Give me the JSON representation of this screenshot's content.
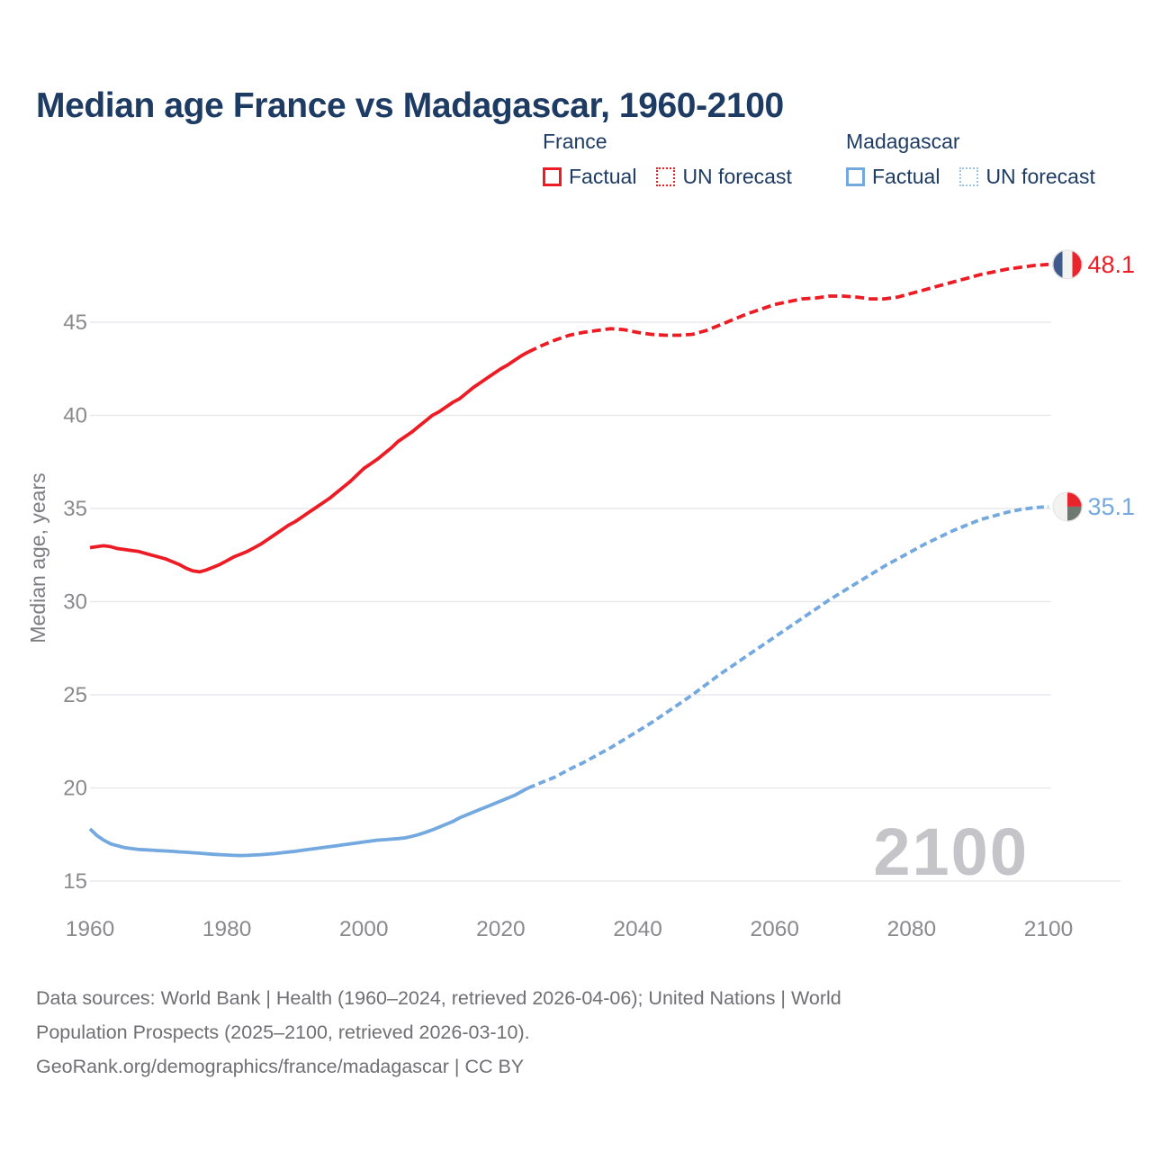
{
  "title": "Median age France vs Madagascar, 1960-2100",
  "legend": {
    "france": {
      "name": "France",
      "factual_label": "Factual",
      "forecast_label": "UN forecast",
      "factual_color": "#ed1c24",
      "forecast_color": "#ed1c24"
    },
    "madagascar": {
      "name": "Madagascar",
      "factual_label": "Factual",
      "forecast_label": "UN forecast",
      "factual_color": "#74a9e0",
      "forecast_color": "#9cc3ec"
    }
  },
  "watermark": "2100",
  "footer": {
    "line1": "Data sources: World Bank | Health (1960–2024, retrieved 2026-04-06); United Nations | World",
    "line2": "Population Prospects (2025–2100, retrieved 2026-03-10).",
    "line3": "GeoRank.org/demographics/france/madagascar | CC BY"
  },
  "chart_data": {
    "type": "line",
    "title": "Median age France vs Madagascar, 1960-2100",
    "xlabel": "",
    "ylabel": "Median age, years",
    "xlim": [
      1960,
      2112
    ],
    "ylim": [
      13.5,
      49.5
    ],
    "x_ticks": [
      1960,
      1980,
      2000,
      2020,
      2040,
      2060,
      2080,
      2100
    ],
    "y_ticks": [
      15,
      20,
      25,
      30,
      35,
      40,
      45
    ],
    "grid": true,
    "legend_position": "top-right",
    "colors": {
      "gridline": "#e9e9ed",
      "tick_text": "#8a8a8e",
      "axis_title": "#7c7c82",
      "watermark": "#c5c5c9",
      "france": "#ed1c24",
      "madagascar": "#74a9e0"
    },
    "series": [
      {
        "name": "France factual",
        "style": "solid",
        "color": "#ed1c24",
        "points": [
          [
            1960,
            32.9
          ],
          [
            1961,
            32.95
          ],
          [
            1962,
            33.0
          ],
          [
            1963,
            32.95
          ],
          [
            1964,
            32.85
          ],
          [
            1965,
            32.8
          ],
          [
            1966,
            32.75
          ],
          [
            1967,
            32.7
          ],
          [
            1968,
            32.6
          ],
          [
            1969,
            32.5
          ],
          [
            1970,
            32.4
          ],
          [
            1971,
            32.3
          ],
          [
            1972,
            32.15
          ],
          [
            1973,
            32.0
          ],
          [
            1974,
            31.8
          ],
          [
            1975,
            31.65
          ],
          [
            1976,
            31.6
          ],
          [
            1977,
            31.7
          ],
          [
            1978,
            31.85
          ],
          [
            1979,
            32.0
          ],
          [
            1980,
            32.2
          ],
          [
            1981,
            32.4
          ],
          [
            1982,
            32.55
          ],
          [
            1983,
            32.7
          ],
          [
            1984,
            32.9
          ],
          [
            1985,
            33.1
          ],
          [
            1986,
            33.35
          ],
          [
            1987,
            33.6
          ],
          [
            1988,
            33.85
          ],
          [
            1989,
            34.1
          ],
          [
            1990,
            34.3
          ],
          [
            1991,
            34.55
          ],
          [
            1992,
            34.8
          ],
          [
            1993,
            35.05
          ],
          [
            1994,
            35.3
          ],
          [
            1995,
            35.55
          ],
          [
            1996,
            35.85
          ],
          [
            1997,
            36.15
          ],
          [
            1998,
            36.45
          ],
          [
            1999,
            36.8
          ],
          [
            2000,
            37.15
          ],
          [
            2001,
            37.4
          ],
          [
            2002,
            37.65
          ],
          [
            2003,
            37.95
          ],
          [
            2004,
            38.25
          ],
          [
            2005,
            38.6
          ],
          [
            2006,
            38.85
          ],
          [
            2007,
            39.1
          ],
          [
            2008,
            39.4
          ],
          [
            2009,
            39.7
          ],
          [
            2010,
            40.0
          ],
          [
            2011,
            40.2
          ],
          [
            2012,
            40.45
          ],
          [
            2013,
            40.7
          ],
          [
            2014,
            40.9
          ],
          [
            2015,
            41.2
          ],
          [
            2016,
            41.5
          ],
          [
            2017,
            41.75
          ],
          [
            2018,
            42.0
          ],
          [
            2019,
            42.25
          ],
          [
            2020,
            42.5
          ],
          [
            2021,
            42.7
          ],
          [
            2022,
            42.95
          ],
          [
            2023,
            43.2
          ],
          [
            2024,
            43.4
          ]
        ]
      },
      {
        "name": "France UN forecast",
        "style": "dashed",
        "color": "#ed1c24",
        "points": [
          [
            2024,
            43.4
          ],
          [
            2026,
            43.75
          ],
          [
            2028,
            44.05
          ],
          [
            2030,
            44.3
          ],
          [
            2032,
            44.45
          ],
          [
            2034,
            44.55
          ],
          [
            2036,
            44.65
          ],
          [
            2038,
            44.6
          ],
          [
            2040,
            44.45
          ],
          [
            2042,
            44.35
          ],
          [
            2044,
            44.3
          ],
          [
            2046,
            44.3
          ],
          [
            2048,
            44.35
          ],
          [
            2050,
            44.55
          ],
          [
            2052,
            44.85
          ],
          [
            2054,
            45.15
          ],
          [
            2056,
            45.45
          ],
          [
            2058,
            45.7
          ],
          [
            2060,
            45.95
          ],
          [
            2062,
            46.1
          ],
          [
            2064,
            46.25
          ],
          [
            2066,
            46.3
          ],
          [
            2068,
            46.4
          ],
          [
            2070,
            46.4
          ],
          [
            2072,
            46.35
          ],
          [
            2074,
            46.25
          ],
          [
            2076,
            46.25
          ],
          [
            2078,
            46.35
          ],
          [
            2080,
            46.55
          ],
          [
            2082,
            46.75
          ],
          [
            2084,
            46.95
          ],
          [
            2086,
            47.15
          ],
          [
            2088,
            47.35
          ],
          [
            2090,
            47.55
          ],
          [
            2092,
            47.7
          ],
          [
            2094,
            47.85
          ],
          [
            2096,
            47.95
          ],
          [
            2098,
            48.05
          ],
          [
            2100,
            48.1
          ]
        ]
      },
      {
        "name": "Madagascar factual",
        "style": "solid",
        "color": "#74a9e0",
        "points": [
          [
            1960,
            17.8
          ],
          [
            1961,
            17.45
          ],
          [
            1962,
            17.2
          ],
          [
            1963,
            17.0
          ],
          [
            1964,
            16.9
          ],
          [
            1965,
            16.8
          ],
          [
            1966,
            16.75
          ],
          [
            1967,
            16.7
          ],
          [
            1968,
            16.68
          ],
          [
            1969,
            16.66
          ],
          [
            1970,
            16.64
          ],
          [
            1971,
            16.62
          ],
          [
            1972,
            16.6
          ],
          [
            1973,
            16.57
          ],
          [
            1974,
            16.55
          ],
          [
            1975,
            16.52
          ],
          [
            1976,
            16.5
          ],
          [
            1977,
            16.47
          ],
          [
            1978,
            16.44
          ],
          [
            1979,
            16.42
          ],
          [
            1980,
            16.4
          ],
          [
            1981,
            16.38
          ],
          [
            1982,
            16.37
          ],
          [
            1983,
            16.38
          ],
          [
            1984,
            16.4
          ],
          [
            1985,
            16.42
          ],
          [
            1986,
            16.45
          ],
          [
            1987,
            16.48
          ],
          [
            1988,
            16.52
          ],
          [
            1989,
            16.56
          ],
          [
            1990,
            16.6
          ],
          [
            1991,
            16.65
          ],
          [
            1992,
            16.7
          ],
          [
            1993,
            16.75
          ],
          [
            1994,
            16.8
          ],
          [
            1995,
            16.85
          ],
          [
            1996,
            16.9
          ],
          [
            1997,
            16.95
          ],
          [
            1998,
            17.0
          ],
          [
            1999,
            17.05
          ],
          [
            2000,
            17.1
          ],
          [
            2001,
            17.15
          ],
          [
            2002,
            17.2
          ],
          [
            2003,
            17.22
          ],
          [
            2004,
            17.25
          ],
          [
            2005,
            17.28
          ],
          [
            2006,
            17.32
          ],
          [
            2007,
            17.4
          ],
          [
            2008,
            17.5
          ],
          [
            2009,
            17.62
          ],
          [
            2010,
            17.75
          ],
          [
            2011,
            17.9
          ],
          [
            2012,
            18.05
          ],
          [
            2013,
            18.2
          ],
          [
            2014,
            18.4
          ],
          [
            2015,
            18.55
          ],
          [
            2016,
            18.7
          ],
          [
            2017,
            18.85
          ],
          [
            2018,
            19.0
          ],
          [
            2019,
            19.15
          ],
          [
            2020,
            19.3
          ],
          [
            2021,
            19.45
          ],
          [
            2022,
            19.6
          ],
          [
            2023,
            19.8
          ],
          [
            2024,
            20.0
          ]
        ]
      },
      {
        "name": "Madagascar UN forecast",
        "style": "dashed",
        "color": "#74a9e0",
        "points": [
          [
            2024,
            20.0
          ],
          [
            2026,
            20.3
          ],
          [
            2028,
            20.6
          ],
          [
            2030,
            21.0
          ],
          [
            2032,
            21.35
          ],
          [
            2034,
            21.75
          ],
          [
            2036,
            22.15
          ],
          [
            2038,
            22.6
          ],
          [
            2040,
            23.05
          ],
          [
            2042,
            23.5
          ],
          [
            2044,
            24.0
          ],
          [
            2046,
            24.5
          ],
          [
            2048,
            25.0
          ],
          [
            2050,
            25.55
          ],
          [
            2052,
            26.1
          ],
          [
            2054,
            26.6
          ],
          [
            2056,
            27.1
          ],
          [
            2058,
            27.6
          ],
          [
            2060,
            28.1
          ],
          [
            2062,
            28.6
          ],
          [
            2064,
            29.1
          ],
          [
            2066,
            29.6
          ],
          [
            2068,
            30.1
          ],
          [
            2070,
            30.55
          ],
          [
            2072,
            31.0
          ],
          [
            2074,
            31.45
          ],
          [
            2076,
            31.9
          ],
          [
            2078,
            32.3
          ],
          [
            2080,
            32.7
          ],
          [
            2082,
            33.1
          ],
          [
            2084,
            33.45
          ],
          [
            2086,
            33.8
          ],
          [
            2088,
            34.1
          ],
          [
            2090,
            34.4
          ],
          [
            2092,
            34.6
          ],
          [
            2094,
            34.8
          ],
          [
            2096,
            34.95
          ],
          [
            2098,
            35.05
          ],
          [
            2100,
            35.1
          ]
        ]
      }
    ],
    "end_labels": [
      {
        "text": "48.1",
        "value": 48.1,
        "color": "#ed1c24",
        "flag": "france"
      },
      {
        "text": "35.1",
        "value": 35.1,
        "color": "#74a9e0",
        "flag": "madagascar"
      }
    ],
    "flags": {
      "france": {
        "left": "#3f5a8c",
        "middle": "#f2f2f0",
        "right": "#e8242d"
      },
      "madagascar": {
        "left": "#f2f2f0",
        "top_right": "#e8242d",
        "bottom_right": "#6e7a70"
      }
    }
  }
}
